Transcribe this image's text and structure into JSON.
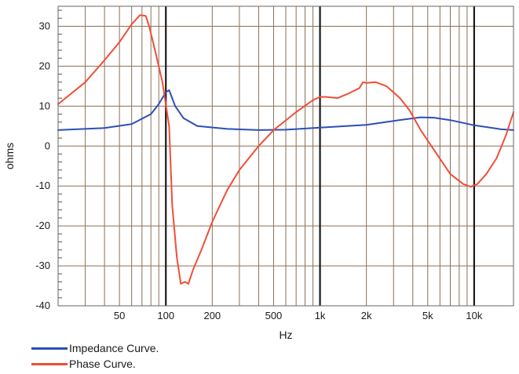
{
  "chart_data": {
    "type": "line",
    "xlabel": "Hz",
    "ylabel": "ohms",
    "x_scale": "log",
    "xlim": [
      20,
      18000
    ],
    "ylim": [
      -40,
      35
    ],
    "grid": true,
    "legend_position": "bottom-left",
    "x_ticks": [
      {
        "value": 50,
        "label": "50"
      },
      {
        "value": 100,
        "label": "100"
      },
      {
        "value": 200,
        "label": "200"
      },
      {
        "value": 500,
        "label": "500"
      },
      {
        "value": 1000,
        "label": "1k"
      },
      {
        "value": 2000,
        "label": "2k"
      },
      {
        "value": 5000,
        "label": "5k"
      },
      {
        "value": 10000,
        "label": "10k"
      }
    ],
    "y_ticks": [
      30,
      20,
      10,
      0,
      -10,
      -20,
      -30,
      -40
    ],
    "series": [
      {
        "name": "Impedance Curve.",
        "color": "#2b4fb5",
        "points": [
          [
            20,
            4
          ],
          [
            40,
            4.5
          ],
          [
            60,
            5.5
          ],
          [
            80,
            8
          ],
          [
            90,
            10.5
          ],
          [
            100,
            13.5
          ],
          [
            105,
            14
          ],
          [
            115,
            10
          ],
          [
            130,
            7
          ],
          [
            160,
            5
          ],
          [
            250,
            4.3
          ],
          [
            400,
            4
          ],
          [
            600,
            4.1
          ],
          [
            1000,
            4.6
          ],
          [
            2000,
            5.3
          ],
          [
            3000,
            6.3
          ],
          [
            4500,
            7.2
          ],
          [
            5500,
            7.1
          ],
          [
            7000,
            6.5
          ],
          [
            10000,
            5.2
          ],
          [
            15000,
            4.2
          ],
          [
            18000,
            4
          ]
        ]
      },
      {
        "name": "Phase Curve.",
        "color": "#f04e37",
        "points": [
          [
            20,
            10.5
          ],
          [
            30,
            16
          ],
          [
            40,
            21.5
          ],
          [
            50,
            26
          ],
          [
            60,
            30.5
          ],
          [
            68,
            32.8
          ],
          [
            74,
            32.6
          ],
          [
            78,
            30
          ],
          [
            85,
            24
          ],
          [
            95,
            16
          ],
          [
            105,
            5
          ],
          [
            110,
            -15
          ],
          [
            118,
            -28
          ],
          [
            125,
            -34.5
          ],
          [
            133,
            -34
          ],
          [
            140,
            -34.5
          ],
          [
            150,
            -31
          ],
          [
            170,
            -26
          ],
          [
            200,
            -19
          ],
          [
            250,
            -11
          ],
          [
            300,
            -6
          ],
          [
            400,
            0
          ],
          [
            500,
            4
          ],
          [
            700,
            8.5
          ],
          [
            900,
            11.5
          ],
          [
            1000,
            12.3
          ],
          [
            1100,
            12.3
          ],
          [
            1300,
            12
          ],
          [
            1500,
            13
          ],
          [
            1800,
            14.5
          ],
          [
            1900,
            16
          ],
          [
            2000,
            15.8
          ],
          [
            2300,
            16
          ],
          [
            2700,
            15
          ],
          [
            3300,
            12
          ],
          [
            3800,
            9
          ],
          [
            4500,
            4
          ],
          [
            5500,
            -1
          ],
          [
            7000,
            -7
          ],
          [
            8500,
            -9.5
          ],
          [
            9500,
            -10.2
          ],
          [
            10500,
            -9.5
          ],
          [
            12000,
            -7
          ],
          [
            14000,
            -3
          ],
          [
            16000,
            2.5
          ],
          [
            18000,
            8.5
          ]
        ]
      }
    ]
  }
}
